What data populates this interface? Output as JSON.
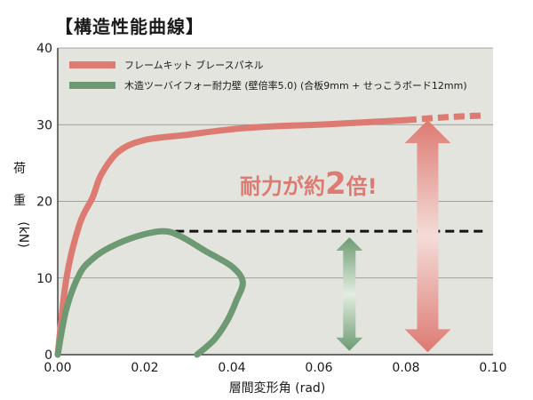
{
  "title": "【構造性能曲線】",
  "chart_data": {
    "type": "line",
    "xlabel": "層間変形角 (rad)",
    "ylabel_chars": [
      "荷",
      "重",
      "(kN)"
    ],
    "xlim": [
      0,
      0.1
    ],
    "ylim": [
      0,
      40
    ],
    "x_ticks": [
      0.0,
      0.02,
      0.04,
      0.06,
      0.08,
      0.1
    ],
    "x_tick_labels": [
      "0.00",
      "0.02",
      "0.04",
      "0.06",
      "0.08",
      "0.10"
    ],
    "y_ticks": [
      0,
      10,
      20,
      30,
      40
    ],
    "y_tick_labels": [
      "0",
      "10",
      "20",
      "30",
      "40"
    ],
    "grid": "horizontal",
    "legend_position": "top-left",
    "series": [
      {
        "name": "フレームキット ブレースパネル",
        "color": "#dd7a72",
        "points": [
          [
            0.0,
            0.0
          ],
          [
            0.002,
            10.0
          ],
          [
            0.005,
            17.0
          ],
          [
            0.008,
            20.5
          ],
          [
            0.01,
            23.5
          ],
          [
            0.014,
            26.5
          ],
          [
            0.02,
            28.0
          ],
          [
            0.03,
            28.7
          ],
          [
            0.04,
            29.4
          ],
          [
            0.05,
            29.8
          ],
          [
            0.06,
            30.0
          ],
          [
            0.07,
            30.3
          ],
          [
            0.08,
            30.6
          ]
        ],
        "dashed_extension": [
          [
            0.08,
            30.6
          ],
          [
            0.09,
            31.0
          ],
          [
            0.098,
            31.2
          ]
        ]
      },
      {
        "name": "木造ツーバイフォー耐力壁 (壁倍率5.0) (合板9mm + せっこうボード12mm)",
        "color": "#6d9a72",
        "points": [
          [
            0.0,
            0.0
          ],
          [
            0.002,
            6.0
          ],
          [
            0.005,
            10.5
          ],
          [
            0.008,
            12.5
          ],
          [
            0.012,
            14.0
          ],
          [
            0.018,
            15.4
          ],
          [
            0.024,
            16.1
          ],
          [
            0.028,
            15.5
          ],
          [
            0.034,
            13.5
          ],
          [
            0.04,
            11.5
          ],
          [
            0.0425,
            9.5
          ],
          [
            0.041,
            7.0
          ],
          [
            0.039,
            4.5
          ],
          [
            0.036,
            2.0
          ],
          [
            0.032,
            0.0
          ]
        ]
      }
    ],
    "reference_line": {
      "y": 16.1,
      "x_start": 0.027,
      "x_end": 0.098,
      "color": "#111111"
    },
    "arrows": [
      {
        "x": 0.067,
        "y_from": 0.5,
        "y_to": 15.3,
        "color": "#6d9a72"
      },
      {
        "x": 0.085,
        "y_from": 0.3,
        "y_to": 30.6,
        "color": "#dd7a72"
      }
    ],
    "annotation": {
      "prefix": "耐力が約",
      "number": "2",
      "suffix": "倍!",
      "color": "#dd7a72"
    }
  }
}
